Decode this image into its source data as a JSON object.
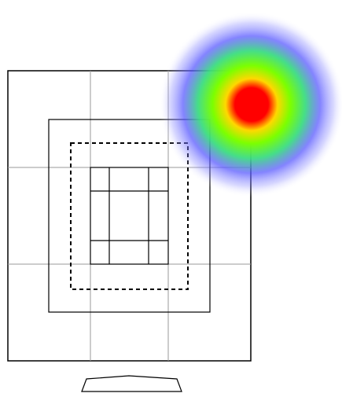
{
  "view": {
    "background": "#ffffff",
    "line_color": "#000000",
    "grid_color": "#9a9a9a"
  },
  "heatmap": {
    "gradient": [
      "#ff0000",
      "#ffff00",
      "#00ff00",
      "#0000ff"
    ],
    "peak_label": ""
  },
  "icons": {
    "outer_frame": "screen-frame-icon",
    "inner_target": "grid-target-icon",
    "base": "monitor-stand-icon"
  }
}
